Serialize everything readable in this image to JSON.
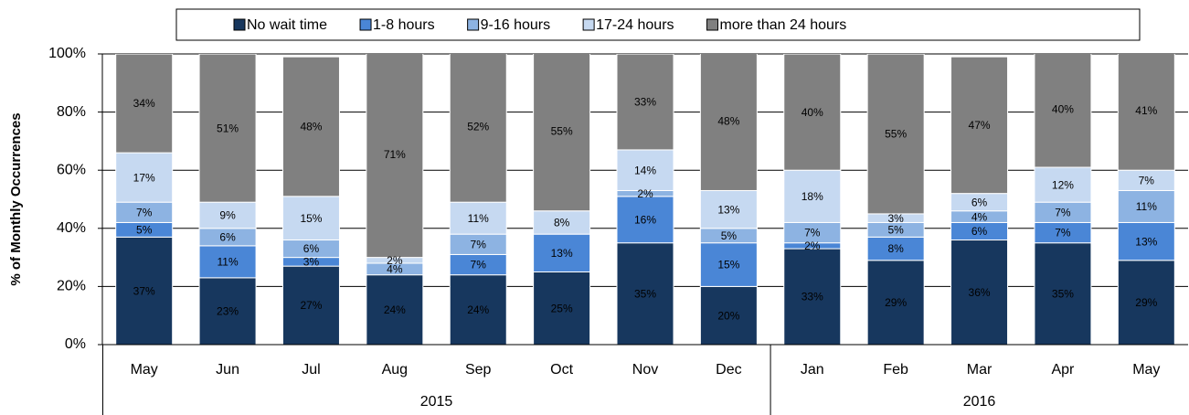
{
  "chart_data": {
    "type": "stacked_bar",
    "y_label": "% of Monthly Occurrences",
    "categories": [
      "May",
      "Jun",
      "Jul",
      "Aug",
      "Sep",
      "Oct",
      "Nov",
      "Dec",
      "Jan",
      "Feb",
      "Mar",
      "Apr",
      "May"
    ],
    "x_groups": [
      {
        "label": "2015",
        "span": 8
      },
      {
        "label": "2016",
        "span": 5
      }
    ],
    "ylim": [
      0,
      100
    ],
    "yticks": [
      {
        "value": 0,
        "label": "0%"
      },
      {
        "value": 20,
        "label": "20%"
      },
      {
        "value": 40,
        "label": "40%"
      },
      {
        "value": 60,
        "label": "60%"
      },
      {
        "value": 80,
        "label": "80%"
      },
      {
        "value": 100,
        "label": "100%"
      }
    ],
    "grid": true,
    "legend": "top",
    "series": [
      {
        "name": "No wait time",
        "color": "#17375e",
        "label_color": "#ffffff",
        "values": [
          37,
          23,
          27,
          24,
          24,
          25,
          35,
          20,
          33,
          29,
          36,
          35,
          29
        ],
        "value_labels": [
          "37%",
          "23%",
          "27%",
          "24%",
          "24%",
          "25%",
          "35%",
          "20%",
          "33%",
          "29%",
          "36%",
          "35%",
          "29%"
        ]
      },
      {
        "name": "1-8 hours",
        "color": "#4a86d6",
        "label_color": "#ffffff",
        "values": [
          5,
          11,
          3,
          null,
          7,
          13,
          16,
          15,
          2,
          8,
          6,
          7,
          13
        ],
        "value_labels": [
          "5%",
          "11%",
          "3%",
          null,
          "7%",
          "13%",
          "16%",
          "15%",
          "2%",
          "8%",
          "6%",
          "7%",
          "13%"
        ]
      },
      {
        "name": "9-16 hours",
        "color": "#8db3e2",
        "label_color": "#000000",
        "values": [
          7,
          6,
          6,
          4,
          7,
          null,
          2,
          5,
          7,
          5,
          4,
          7,
          11
        ],
        "value_labels": [
          "7%",
          "6%",
          "6%",
          "4%",
          "7%",
          null,
          "2%",
          "5%",
          "7%",
          "5%",
          "4%",
          "7%",
          "11%"
        ]
      },
      {
        "name": "17-24 hours",
        "color": "#c6d9f1",
        "label_color": "#000000",
        "values": [
          17,
          9,
          15,
          2,
          11,
          8,
          14,
          13,
          18,
          3,
          6,
          12,
          7
        ],
        "value_labels": [
          "17%",
          "9%",
          "15%",
          "2%",
          "11%",
          "8%",
          "14%",
          "13%",
          "18%",
          "3%",
          "6%",
          "12%",
          "7%"
        ]
      },
      {
        "name": "more than 24 hours",
        "color": "#808080",
        "label_color": "#ffffff",
        "values": [
          34,
          51,
          48,
          71,
          52,
          55,
          33,
          48,
          40,
          55,
          47,
          40,
          41
        ],
        "value_labels": [
          "34%",
          "51%",
          "48%",
          "71%",
          "52%",
          "55%",
          "33%",
          "48%",
          "40%",
          "55%",
          "47%",
          "40%",
          "41%"
        ]
      }
    ]
  }
}
